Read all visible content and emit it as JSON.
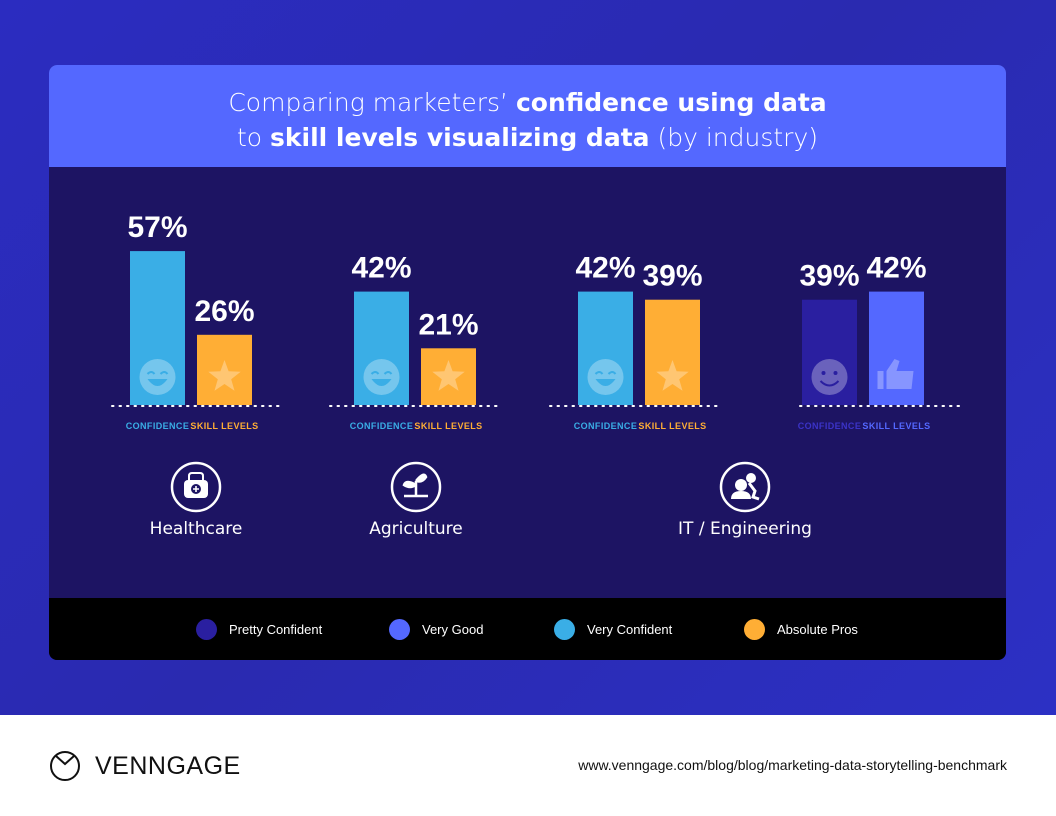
{
  "title": {
    "pre1": "Comparing marketers’ ",
    "bold1": "confidence using data",
    "pre2": "to ",
    "bold2": "skill levels visualizing data",
    "post2": " (by industry)"
  },
  "colors": {
    "pretty_confident": "#2a1fa0",
    "very_good": "#5468ff",
    "very_confident": "#3aaee6",
    "absolute_pros": "#ffae35"
  },
  "chart_data": {
    "type": "bar",
    "groups": [
      {
        "industry": "Healthcare",
        "icon": "medical-bag-icon",
        "bars": [
          {
            "label": "CONFIDENCE",
            "value": 57,
            "display": "57%",
            "legend": "Very Confident",
            "icon": "laughing-face-icon"
          },
          {
            "label": "SKILL LEVELS",
            "value": 26,
            "display": "26%",
            "legend": "Absolute Pros",
            "icon": "star-icon"
          }
        ]
      },
      {
        "industry": "Agriculture",
        "icon": "plant-icon",
        "bars": [
          {
            "label": "CONFIDENCE",
            "value": 42,
            "display": "42%",
            "legend": "Very Confident",
            "icon": "laughing-face-icon"
          },
          {
            "label": "SKILL LEVELS",
            "value": 21,
            "display": "21%",
            "legend": "Absolute Pros",
            "icon": "star-icon"
          }
        ]
      },
      {
        "industry": "IT / Engineering",
        "icon": "engineers-icon",
        "bars": [
          {
            "label": "CONFIDENCE",
            "value": 42,
            "display": "42%",
            "legend": "Very Confident",
            "icon": "laughing-face-icon"
          },
          {
            "label": "SKILL LEVELS",
            "value": 39,
            "display": "39%",
            "legend": "Absolute Pros",
            "icon": "star-icon"
          }
        ]
      },
      {
        "industry": "",
        "icon": "",
        "bars": [
          {
            "label": "CONFIDENCE",
            "value": 39,
            "display": "39%",
            "legend": "Pretty Confident",
            "icon": "smiley-face-icon"
          },
          {
            "label": "SKILL LEVELS",
            "value": 42,
            "display": "42%",
            "legend": "Very Good",
            "icon": "thumbs-up-icon"
          }
        ]
      }
    ],
    "legend": [
      {
        "label": "Pretty Confident",
        "color": "#2a1fa0"
      },
      {
        "label": "Very Good",
        "color": "#5468ff"
      },
      {
        "label": "Very Confident",
        "color": "#3aaee6"
      },
      {
        "label": "Absolute Pros",
        "color": "#ffae35"
      }
    ],
    "legend_position": "bottom"
  },
  "footer": {
    "brand": "VENNGAGE",
    "url": "www.venngage.com/blog/blog/marketing-data-storytelling-benchmark"
  }
}
